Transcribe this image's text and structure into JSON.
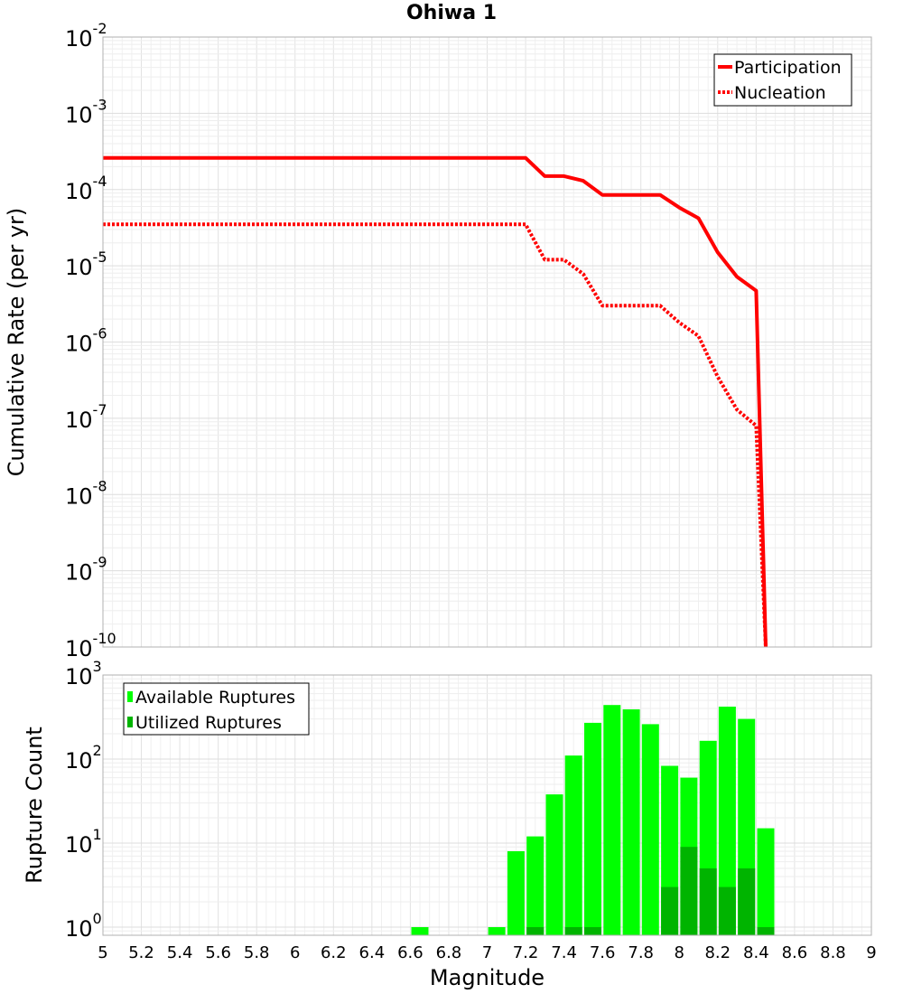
{
  "chart_data": [
    {
      "type": "line",
      "title": "Ohiwa 1",
      "xlabel": "",
      "ylabel": "Cumulative Rate (per yr)",
      "yscale": "log",
      "xlim": [
        5,
        9
      ],
      "ylim": [
        1e-10,
        0.01
      ],
      "y_tick_labels": [
        {
          "base": "10",
          "exp": "-10"
        },
        {
          "base": "10",
          "exp": "-9"
        },
        {
          "base": "10",
          "exp": "-8"
        },
        {
          "base": "10",
          "exp": "-7"
        },
        {
          "base": "10",
          "exp": "-6"
        },
        {
          "base": "10",
          "exp": "-5"
        },
        {
          "base": "10",
          "exp": "-4"
        },
        {
          "base": "10",
          "exp": "-3"
        },
        {
          "base": "10",
          "exp": "-2"
        }
      ],
      "grid": true,
      "legend_position": "top-right",
      "series": [
        {
          "name": "Participation",
          "style": "solid",
          "color": "#ff0000",
          "x": [
            5.0,
            7.2,
            7.3,
            7.4,
            7.5,
            7.6,
            7.7,
            7.8,
            7.9,
            8.0,
            8.1,
            8.2,
            8.3,
            8.4,
            8.45
          ],
          "y": [
            0.00026,
            0.00026,
            0.00015,
            0.00015,
            0.00013,
            8.5e-05,
            8.5e-05,
            8.5e-05,
            8.5e-05,
            5.8e-05,
            4.2e-05,
            1.5e-05,
            7.2e-06,
            4.7e-06,
            1e-10
          ]
        },
        {
          "name": "Nucleation",
          "style": "dotted",
          "color": "#ff0000",
          "x": [
            5.0,
            7.2,
            7.3,
            7.4,
            7.5,
            7.6,
            7.7,
            7.8,
            7.9,
            8.0,
            8.1,
            8.2,
            8.3,
            8.4,
            8.45
          ],
          "y": [
            3.5e-05,
            3.5e-05,
            1.2e-05,
            1.2e-05,
            7.8e-06,
            3e-06,
            3e-06,
            3e-06,
            3e-06,
            1.8e-06,
            1.2e-06,
            3.5e-07,
            1.3e-07,
            8e-08,
            1e-10
          ]
        }
      ]
    },
    {
      "type": "bar",
      "title": "",
      "xlabel": "Magnitude",
      "ylabel": "Rupture Count",
      "yscale": "log",
      "xlim": [
        5,
        9
      ],
      "ylim": [
        0.8,
        1000
      ],
      "x_ticks": [
        "5",
        "5.2",
        "5.4",
        "5.6",
        "5.8",
        "6",
        "6.2",
        "6.4",
        "6.6",
        "6.8",
        "7",
        "7.2",
        "7.4",
        "7.6",
        "7.8",
        "8",
        "8.2",
        "8.4",
        "8.6",
        "8.8",
        "9"
      ],
      "y_tick_labels": [
        {
          "base": "10",
          "exp": "0"
        },
        {
          "base": "10",
          "exp": "1"
        },
        {
          "base": "10",
          "exp": "2"
        },
        {
          "base": "10",
          "exp": "3"
        }
      ],
      "grid": true,
      "legend_position": "top-left",
      "series": [
        {
          "name": "Available Ruptures",
          "color": "#00ff00",
          "x": [
            6.65,
            7.05,
            7.15,
            7.25,
            7.35,
            7.45,
            7.55,
            7.65,
            7.75,
            7.85,
            7.95,
            8.05,
            8.15,
            8.25,
            8.35,
            8.45
          ],
          "values": [
            1,
            1,
            8,
            12,
            38,
            110,
            270,
            440,
            390,
            260,
            83,
            60,
            165,
            420,
            300,
            15
          ]
        },
        {
          "name": "Utilized Ruptures",
          "color": "#00b400",
          "x": [
            7.25,
            7.45,
            7.55,
            7.95,
            8.05,
            8.15,
            8.25,
            8.35,
            8.45
          ],
          "values": [
            1,
            1,
            1,
            3,
            9,
            5,
            3,
            5,
            1
          ]
        }
      ]
    }
  ]
}
